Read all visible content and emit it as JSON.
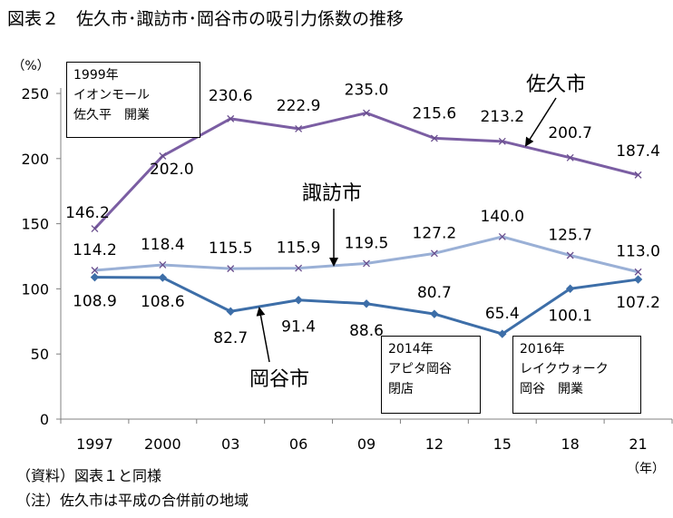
{
  "title": "図表２　佐久市･諏訪市･岡谷市の吸引力係数の推移",
  "notes": [
    "（資料）図表１と同様",
    "（注）佐久市は平成の合併前の地域"
  ],
  "annotations": {
    "box1": [
      "1999年",
      "イオンモール",
      "佐久平　開業"
    ],
    "box2": [
      "2014年",
      "アピタ岡谷",
      "閉店"
    ],
    "box3": [
      "2016年",
      "レイクウォーク",
      "岡谷　開業"
    ]
  },
  "chart_data": {
    "type": "line",
    "title": "図表２　佐久市･諏訪市･岡谷市の吸引力係数の推移",
    "ylabel": "（%）",
    "xlabel": "（年）",
    "categories": [
      "1997",
      "2000",
      "03",
      "06",
      "09",
      "12",
      "15",
      "18",
      "21"
    ],
    "ylim": [
      0,
      250
    ],
    "yticks": [
      0,
      50,
      100,
      150,
      200,
      250
    ],
    "grid": false,
    "series": [
      {
        "name": "佐久市",
        "color": "#7b5ea3",
        "marker": "x",
        "values": [
          146.2,
          202.0,
          230.6,
          222.9,
          235.0,
          215.6,
          213.2,
          200.7,
          187.4
        ],
        "labels": [
          "146.2",
          "202.0",
          "230.6",
          "222.9",
          "235.0",
          "215.6",
          "213.2",
          "200.7",
          "187.4"
        ]
      },
      {
        "name": "諏訪市",
        "color": "#9ab0d6",
        "marker": "x",
        "values": [
          114.2,
          118.4,
          115.5,
          115.9,
          119.5,
          127.2,
          140.0,
          125.7,
          113.0
        ],
        "labels": [
          "114.2",
          "118.4",
          "115.5",
          "115.9",
          "119.5",
          "127.2",
          "140.0",
          "125.7",
          "113.0"
        ]
      },
      {
        "name": "岡谷市",
        "color": "#3d6ea8",
        "marker": "diamond",
        "values": [
          108.9,
          108.6,
          82.7,
          91.4,
          88.6,
          80.7,
          65.4,
          100.1,
          107.2
        ],
        "labels": [
          "108.9",
          "108.6",
          "82.7",
          "91.4",
          "88.6",
          "80.7",
          "65.4",
          "100.1",
          "107.2"
        ]
      }
    ]
  }
}
